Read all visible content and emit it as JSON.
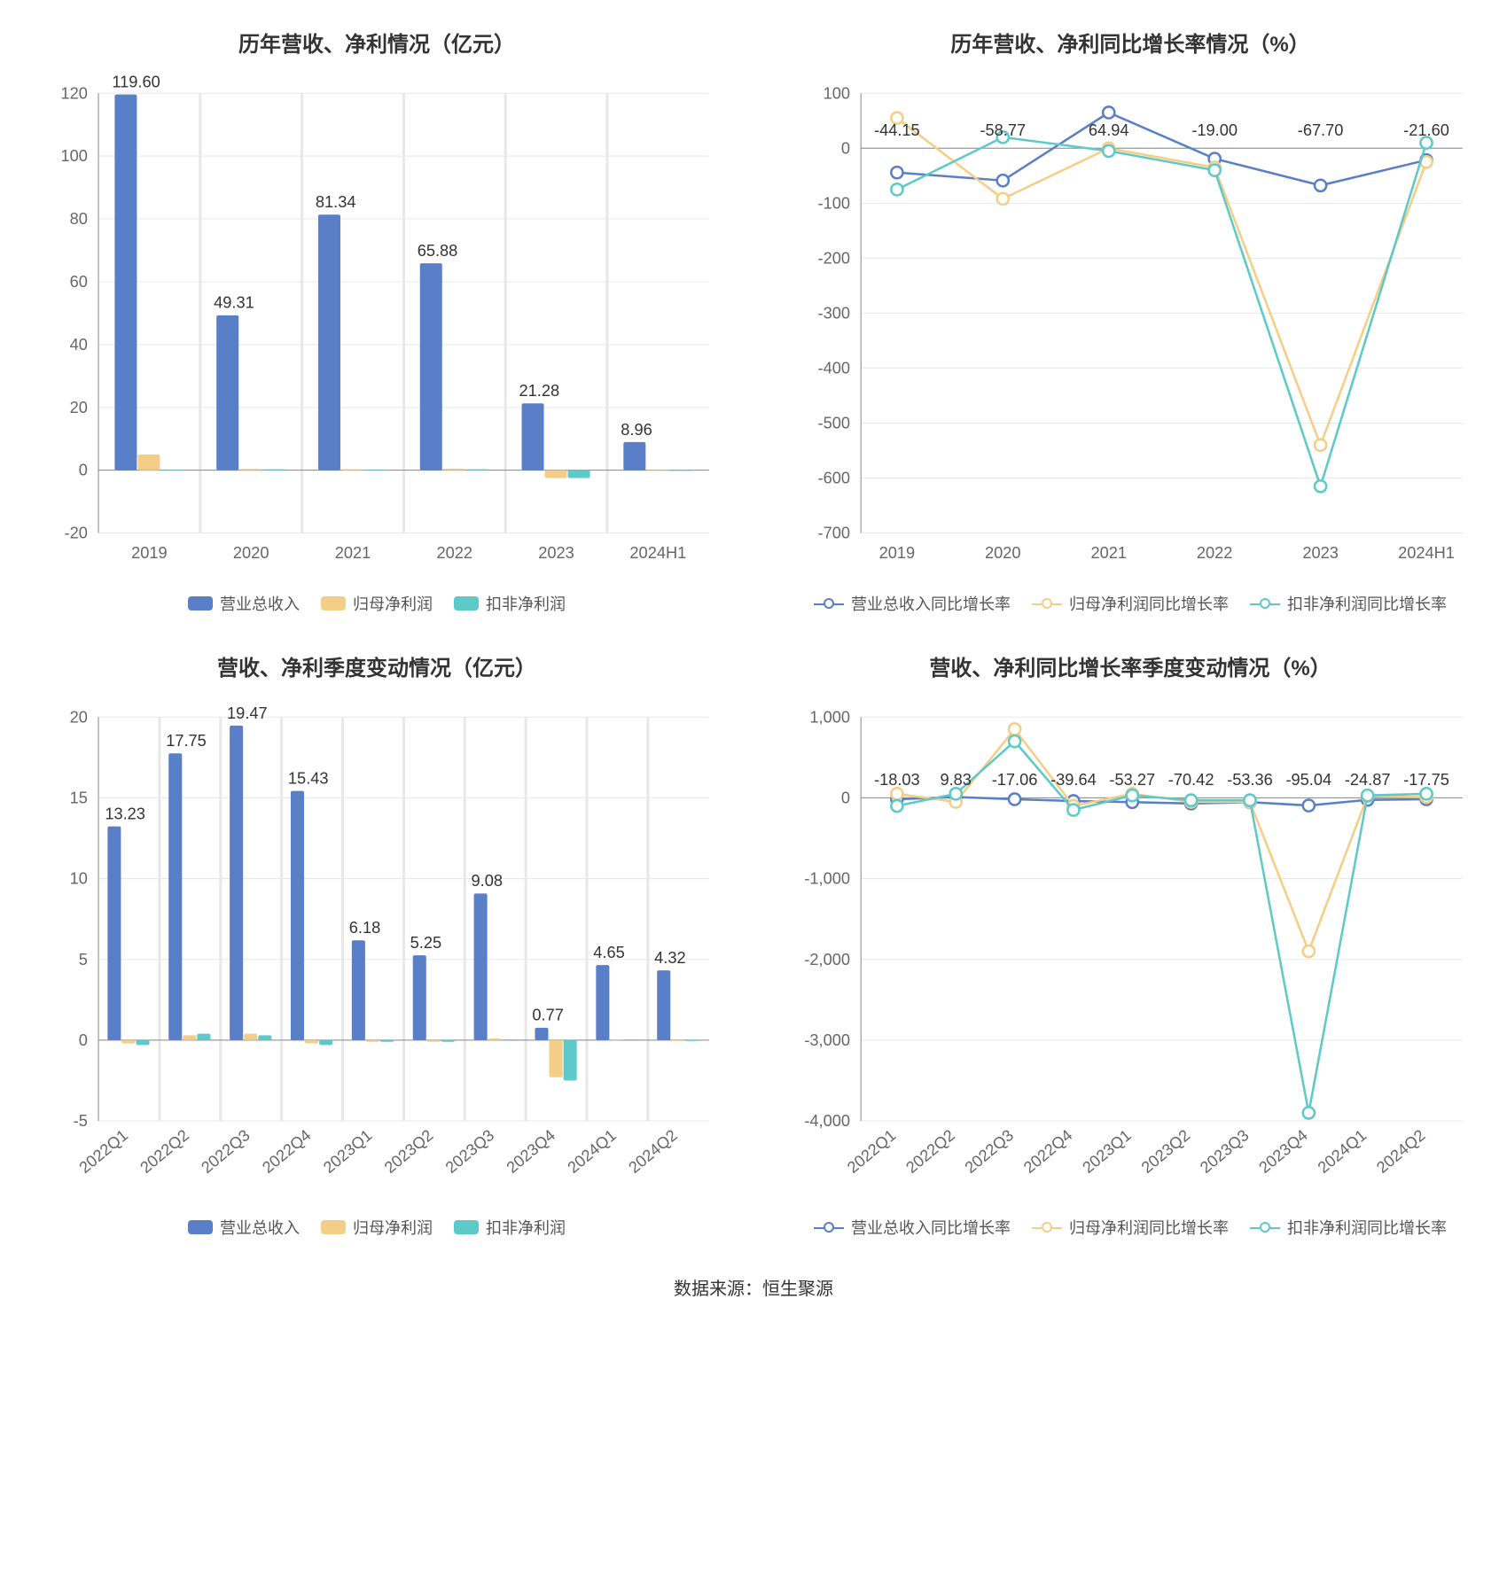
{
  "colors": {
    "blue": "#5a7fc9",
    "yellow": "#f4cd86",
    "teal": "#5dc9c9",
    "axis": "#888888",
    "grid": "#e8e8e8",
    "text": "#333333",
    "label": "#666666",
    "bg": "#ffffff"
  },
  "footer": "数据来源：恒生聚源",
  "chart1": {
    "title": "历年营收、净利情况（亿元）",
    "type": "bar",
    "categories": [
      "2019",
      "2020",
      "2021",
      "2022",
      "2023",
      "2024H1"
    ],
    "ylim": [
      -20,
      120
    ],
    "ytick_step": 20,
    "series": [
      {
        "name": "营业总收入",
        "color": "#5a7fc9",
        "values": [
          119.6,
          49.31,
          81.34,
          65.88,
          21.28,
          8.96
        ],
        "showLabel": true
      },
      {
        "name": "归母净利润",
        "color": "#f4cd86",
        "values": [
          5.0,
          0.4,
          0.3,
          0.5,
          -2.5,
          -0.2
        ],
        "showLabel": false
      },
      {
        "name": "扣非净利润",
        "color": "#5dc9c9",
        "values": [
          0.2,
          0.3,
          0.2,
          0.3,
          -2.5,
          -0.2
        ],
        "showLabel": false
      }
    ],
    "legend": [
      "营业总收入",
      "归母净利润",
      "扣非净利润"
    ],
    "title_fontsize": 24,
    "label_fontsize": 18,
    "bar_group_width": 0.68
  },
  "chart2": {
    "title": "历年营收、净利同比增长率情况（%）",
    "type": "line",
    "categories": [
      "2019",
      "2020",
      "2021",
      "2022",
      "2023",
      "2024H1"
    ],
    "ylim": [
      -700,
      100
    ],
    "ytick_step": 100,
    "series": [
      {
        "name": "营业总收入同比增长率",
        "color": "#5a7fc9",
        "values": [
          -44.15,
          -58.77,
          64.94,
          -19.0,
          -67.7,
          -21.6
        ]
      },
      {
        "name": "归母净利润同比增长率",
        "color": "#f4cd86",
        "values": [
          55,
          -92,
          0,
          -35,
          -540,
          -25
        ]
      },
      {
        "name": "扣非净利润同比增长率",
        "color": "#5dc9c9",
        "values": [
          -75,
          20,
          -5,
          -40,
          -615,
          10
        ]
      }
    ],
    "topLabels": [
      {
        "x": 0,
        "text": "-44.15"
      },
      {
        "x": 1,
        "text": "-58.77"
      },
      {
        "x": 2,
        "text": "64.94"
      },
      {
        "x": 3,
        "text": "-19.00"
      },
      {
        "x": 4,
        "text": "-67.70"
      },
      {
        "x": 5,
        "text": "-21.60"
      }
    ],
    "legend": [
      "营业总收入同比增长率",
      "归母净利润同比增长率",
      "扣非净利润同比增长率"
    ]
  },
  "chart3": {
    "title": "营收、净利季度变动情况（亿元）",
    "type": "bar",
    "categories": [
      "2022Q1",
      "2022Q2",
      "2022Q3",
      "2022Q4",
      "2023Q1",
      "2023Q2",
      "2023Q3",
      "2023Q4",
      "2024Q1",
      "2024Q2"
    ],
    "ylim": [
      -5,
      20
    ],
    "ytick_step": 5,
    "xRotate": true,
    "series": [
      {
        "name": "营业总收入",
        "color": "#5a7fc9",
        "values": [
          13.23,
          17.75,
          19.47,
          15.43,
          6.18,
          5.25,
          9.08,
          0.77,
          4.65,
          4.32
        ],
        "showLabel": true
      },
      {
        "name": "归母净利润",
        "color": "#f4cd86",
        "values": [
          -0.2,
          0.3,
          0.4,
          -0.2,
          -0.1,
          -0.1,
          0.1,
          -2.3,
          0.05,
          -0.05
        ],
        "showLabel": false
      },
      {
        "name": "扣非净利润",
        "color": "#5dc9c9",
        "values": [
          -0.3,
          0.4,
          0.3,
          -0.3,
          -0.1,
          -0.1,
          0.05,
          -2.5,
          0.05,
          -0.05
        ],
        "showLabel": false
      }
    ],
    "legend": [
      "营业总收入",
      "归母净利润",
      "扣非净利润"
    ],
    "bar_group_width": 0.7
  },
  "chart4": {
    "title": "营收、净利同比增长率季度变动情况（%）",
    "type": "line",
    "categories": [
      "2022Q1",
      "2022Q2",
      "2022Q3",
      "2022Q4",
      "2023Q1",
      "2023Q2",
      "2023Q3",
      "2023Q4",
      "2024Q1",
      "2024Q2"
    ],
    "ylim": [
      -4000,
      1000
    ],
    "ytick_step": 1000,
    "xRotate": true,
    "series": [
      {
        "name": "营业总收入同比增长率",
        "color": "#5a7fc9",
        "values": [
          -18.03,
          9.83,
          -17.06,
          -39.64,
          -53.27,
          -70.42,
          -53.36,
          -95.04,
          -24.87,
          -17.75
        ]
      },
      {
        "name": "归母净利润同比增长率",
        "color": "#f4cd86",
        "values": [
          50,
          -50,
          850,
          -100,
          50,
          -50,
          -50,
          -1900,
          20,
          10
        ]
      },
      {
        "name": "扣非净利润同比增长率",
        "color": "#5dc9c9",
        "values": [
          -100,
          50,
          700,
          -150,
          30,
          -30,
          -30,
          -3900,
          30,
          50
        ]
      }
    ],
    "topLabels": [
      {
        "x": 0,
        "text": "-18.03"
      },
      {
        "x": 1,
        "text": "9.83"
      },
      {
        "x": 2,
        "text": "-17.06"
      },
      {
        "x": 3,
        "text": "-39.64"
      },
      {
        "x": 4,
        "text": "-53.27"
      },
      {
        "x": 5,
        "text": "-70.42"
      },
      {
        "x": 6,
        "text": "-53.36"
      },
      {
        "x": 7,
        "text": "-95.04"
      },
      {
        "x": 8,
        "text": "-24.87"
      },
      {
        "x": 9,
        "text": "-17.75"
      }
    ],
    "legend": [
      "营业总收入同比增长率",
      "归母净利润同比增长率",
      "扣非净利润同比增长率"
    ]
  }
}
